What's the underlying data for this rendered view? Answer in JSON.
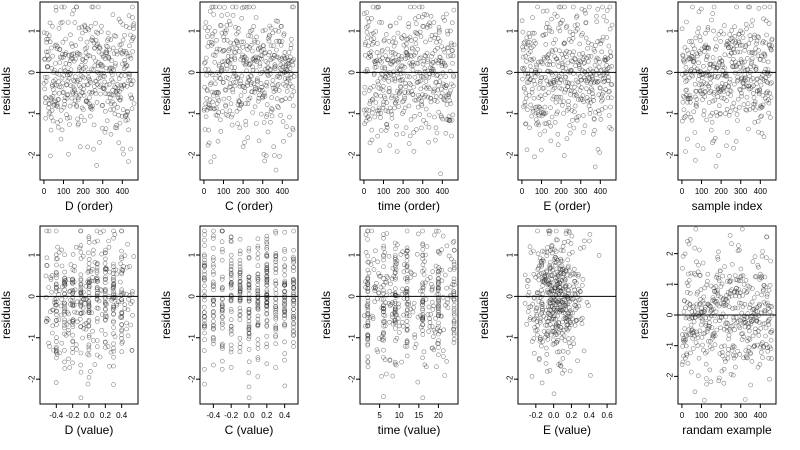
{
  "chart_data": [
    {
      "type": "scatter",
      "xlabel": "D (order)",
      "ylabel": "residuals",
      "xlim": [
        -20,
        480
      ],
      "ylim": [
        -2.6,
        1.7
      ],
      "xticks": [
        0,
        100,
        200,
        300,
        400
      ],
      "xtick_labels": [
        "0",
        "100",
        "200",
        "300",
        "400"
      ],
      "yticks": [
        -2,
        -1,
        0,
        1
      ],
      "ytick_labels": [
        "-2",
        "-1",
        "0",
        "1"
      ],
      "hline": 0,
      "points": {
        "generator": "uniform-index",
        "n": 460,
        "x_range": [
          1,
          460
        ],
        "seed": 11
      }
    },
    {
      "type": "scatter",
      "xlabel": "C (order)",
      "ylabel": "residuals",
      "xlim": [
        -20,
        480
      ],
      "ylim": [
        -2.6,
        1.7
      ],
      "xticks": [
        0,
        100,
        200,
        300,
        400
      ],
      "xtick_labels": [
        "0",
        "100",
        "200",
        "300",
        "400"
      ],
      "yticks": [
        -2,
        -1,
        0,
        1
      ],
      "ytick_labels": [
        "-2",
        "-1",
        "0",
        "1"
      ],
      "hline": 0,
      "points": {
        "generator": "uniform-index",
        "n": 460,
        "x_range": [
          1,
          460
        ],
        "seed": 23
      }
    },
    {
      "type": "scatter",
      "xlabel": "time (order)",
      "ylabel": "residuals",
      "xlim": [
        -20,
        480
      ],
      "ylim": [
        -2.6,
        1.7
      ],
      "xticks": [
        0,
        100,
        200,
        300,
        400
      ],
      "xtick_labels": [
        "0",
        "100",
        "200",
        "300",
        "400"
      ],
      "yticks": [
        -2,
        -1,
        0,
        1
      ],
      "ytick_labels": [
        "-2",
        "-1",
        "0",
        "1"
      ],
      "hline": 0,
      "points": {
        "generator": "uniform-index",
        "n": 460,
        "x_range": [
          1,
          460
        ],
        "seed": 37
      }
    },
    {
      "type": "scatter",
      "xlabel": "E (order)",
      "ylabel": "residuals",
      "xlim": [
        -20,
        480
      ],
      "ylim": [
        -2.6,
        1.7
      ],
      "xticks": [
        0,
        100,
        200,
        300,
        400
      ],
      "xtick_labels": [
        "0",
        "100",
        "200",
        "300",
        "400"
      ],
      "yticks": [
        -2,
        -1,
        0,
        1
      ],
      "ytick_labels": [
        "-2",
        "-1",
        "0",
        "1"
      ],
      "hline": 0,
      "points": {
        "generator": "uniform-index",
        "n": 460,
        "x_range": [
          1,
          460
        ],
        "seed": 41
      }
    },
    {
      "type": "scatter",
      "xlabel": "sample index",
      "ylabel": "residuals",
      "xlim": [
        -20,
        480
      ],
      "ylim": [
        -2.6,
        1.7
      ],
      "xticks": [
        0,
        100,
        200,
        300,
        400
      ],
      "xtick_labels": [
        "0",
        "100",
        "200",
        "300",
        "400"
      ],
      "yticks": [
        -2,
        -1,
        0,
        1
      ],
      "ytick_labels": [
        "-2",
        "-1",
        "0",
        "1"
      ],
      "hline": 0,
      "points": {
        "generator": "uniform-index",
        "n": 460,
        "x_range": [
          1,
          460
        ],
        "seed": 53
      }
    },
    {
      "type": "scatter",
      "xlabel": "D (value)",
      "ylabel": "residuals",
      "xlim": [
        -0.6,
        0.6
      ],
      "ylim": [
        -2.6,
        1.7
      ],
      "xticks": [
        -0.4,
        -0.2,
        0,
        0.2,
        0.4
      ],
      "xtick_labels": [
        "-0.4",
        "-0.2",
        "0.0",
        "0.2",
        "0.4"
      ],
      "yticks": [
        -2,
        -1,
        0,
        1
      ],
      "ytick_labels": [
        "-2",
        "-1",
        "0",
        "1"
      ],
      "hline": 0,
      "points": {
        "generator": "mixed-columns",
        "n": 460,
        "x_range": [
          -0.55,
          0.55
        ],
        "columns": [
          -0.4,
          -0.3,
          -0.2,
          -0.1,
          0,
          0.1,
          0.2,
          0.3,
          0.4
        ],
        "seed": 61
      }
    },
    {
      "type": "scatter",
      "xlabel": "C (value)",
      "ylabel": "residuals",
      "xlim": [
        -0.55,
        0.55
      ],
      "ylim": [
        -2.6,
        1.7
      ],
      "xticks": [
        -0.4,
        -0.2,
        0,
        0.2,
        0.4
      ],
      "xtick_labels": [
        "-0.4",
        "-0.2",
        "0.0",
        "0.2",
        "0.4"
      ],
      "yticks": [
        -2,
        -1,
        0,
        1
      ],
      "ytick_labels": [
        "-2",
        "-1",
        "0",
        "1"
      ],
      "hline": 0,
      "points": {
        "generator": "columns",
        "n": 460,
        "columns": [
          -0.5,
          -0.4,
          -0.3,
          -0.2,
          -0.1,
          0,
          0.1,
          0.2,
          0.3,
          0.4,
          0.5
        ],
        "seed": 71
      }
    },
    {
      "type": "scatter",
      "xlabel": "time (value)",
      "ylabel": "residuals",
      "xlim": [
        0,
        25
      ],
      "ylim": [
        -2.6,
        1.7
      ],
      "xticks": [
        5,
        10,
        15,
        20
      ],
      "xtick_labels": [
        "5",
        "10",
        "15",
        "20"
      ],
      "yticks": [
        -2,
        -1,
        0,
        1
      ],
      "ytick_labels": [
        "-2",
        "-1",
        "0",
        "1"
      ],
      "hline": 0,
      "points": {
        "generator": "mixed-columns",
        "n": 460,
        "x_range": [
          1,
          24
        ],
        "columns": [
          2,
          6,
          9,
          12,
          16,
          20,
          24
        ],
        "seed": 83
      }
    },
    {
      "type": "scatter",
      "xlabel": "E (value)",
      "ylabel": "residuals",
      "xlim": [
        -0.4,
        0.7
      ],
      "ylim": [
        -2.6,
        1.7
      ],
      "xticks": [
        -0.2,
        0,
        0.2,
        0.4,
        0.6
      ],
      "xtick_labels": [
        "-0.2",
        "0.0",
        "0.2",
        "0.4",
        "0.6"
      ],
      "yticks": [
        -2,
        -1,
        0,
        1
      ],
      "ytick_labels": [
        "-2",
        "-1",
        "0",
        "1"
      ],
      "hline": 0,
      "points": {
        "generator": "gaussian-x",
        "n": 460,
        "x_center": 0.02,
        "x_sd": 0.16,
        "seed": 97
      }
    },
    {
      "type": "scatter",
      "xlabel": "randam example",
      "ylabel": "residuals",
      "xlim": [
        -20,
        480
      ],
      "ylim": [
        -2.9,
        2.9
      ],
      "xticks": [
        0,
        100,
        200,
        300,
        400
      ],
      "xtick_labels": [
        "0",
        "100",
        "200",
        "300",
        "400"
      ],
      "yticks": [
        -2,
        -1,
        0,
        1,
        2
      ],
      "ytick_labels": [
        "-2",
        "-1",
        "0",
        "1",
        "2"
      ],
      "hline": 0,
      "points": {
        "generator": "uniform-index",
        "n": 460,
        "x_range": [
          1,
          460
        ],
        "seed": 107
      }
    }
  ]
}
